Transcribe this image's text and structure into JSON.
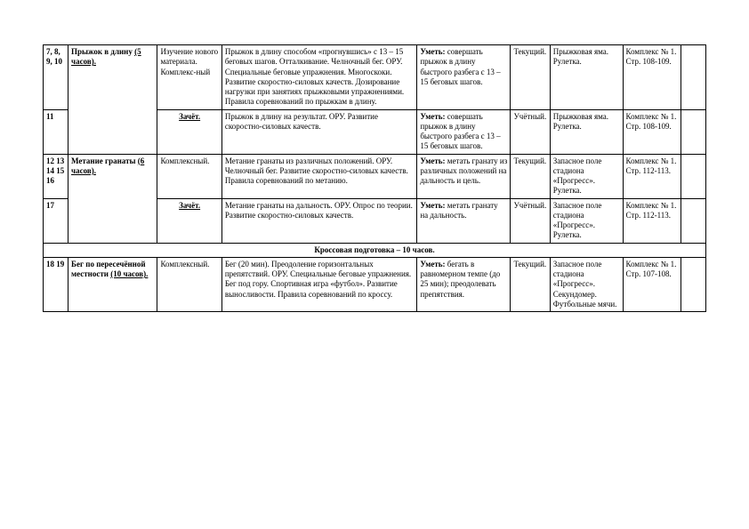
{
  "table_style": {
    "border_color": "#000000",
    "font_family": "Times New Roman",
    "cell_font_size": 9,
    "background": "#ffffff"
  },
  "rows": [
    {
      "c0": "7, 8, 9, 10",
      "c1_topic": "Прыжок в длину",
      "c1_hours": "(5 часов).",
      "c1_rowspan": 2,
      "c2": "Изучение нового материала. Комплекс-ный",
      "c3": "Прыжок в длину способом «прогнувшись» с 13 – 15 беговых шагов. Отталкивание. Челночный бег. ОРУ. Специальные беговые упражнения. Многоскоки. Развитие скоростно-силовых качеств. Дозирование нагрузки при занятиях прыжковыми упражнениями. Правила соревнований по прыжкам в длину.",
      "c4_label": "Уметь:",
      "c4_text": "совершать прыжок в длину быстрого разбега с 13 – 15 беговых шагов.",
      "c5": "Текущий.",
      "c6": "Прыжковая яма. Рулетка.",
      "c7": "Комплекс № 1. Стр. 108-109.",
      "c8": ""
    },
    {
      "c0": "11",
      "c2": "Зачёт.",
      "c2_bold": true,
      "c3": "Прыжок в длину на результат. ОРУ. Развитие скоростно-силовых качеств.",
      "c4_label": "Уметь:",
      "c4_text": "совершать прыжок в длину быстрого разбега с 13 – 15 беговых шагов.",
      "c5": "Учётный.",
      "c6": "Прыжковая яма. Рулетка.",
      "c7": "Комплекс № 1. Стр. 108-109.",
      "c8": ""
    },
    {
      "c0": "12 13 14 15 16",
      "c1_topic": "Метание гранаты",
      "c1_hours": "(6 часов).",
      "c1_rowspan": 2,
      "c2": "Комплексный.",
      "c3": "Метание гранаты из различных положений. ОРУ. Челночный бег. Развитие скоростно-силовых качеств. Правила соревнований по метанию.",
      "c4_label": "Уметь:",
      "c4_text": "метать гранату из различных положений на дальность и цель.",
      "c5": "Текущий.",
      "c6": "Запасное поле стадиона «Прогресс». Рулетка.",
      "c7": "Комплекс № 1. Стр. 112-113.",
      "c8": ""
    },
    {
      "c0": "17",
      "c2": "Зачёт.",
      "c2_bold": true,
      "c3": "Метание гранаты на дальность. ОРУ. Опрос по теории. Развитие скоростно-силовых качеств.",
      "c4_label": "Уметь:",
      "c4_text": "метать гранату на дальность.",
      "c5": "Учётный.",
      "c6": "Запасное поле стадиона «Прогресс». Рулетка.",
      "c7": "Комплекс № 1. Стр. 112-113.",
      "c8": ""
    }
  ],
  "section_header": "Кроссовая подготовка – 10 часов.",
  "rows2": [
    {
      "c0": "18 19",
      "c1_topic": "Бег по пересечённой местности",
      "c1_hours": "(10 часов).",
      "c2": "Комплексный.",
      "c3": "Бег (20 мин). Преодоление горизонтальных препятствий. ОРУ. Специальные беговые упражнения. Бег под гору. Спортивная игра «футбол». Развитие выносливости. Правила соревнований по кроссу.",
      "c4_label": "Уметь:",
      "c4_text": "бегать в равномерном темпе (до 25 мин); преодолевать препятствия.",
      "c5": "Текущий.",
      "c6": "Запасное поле стадиона «Прогресс». Секундомер. Футбольные мячи.",
      "c7": "Комплекс № 1. Стр. 107-108.",
      "c8": ""
    }
  ]
}
